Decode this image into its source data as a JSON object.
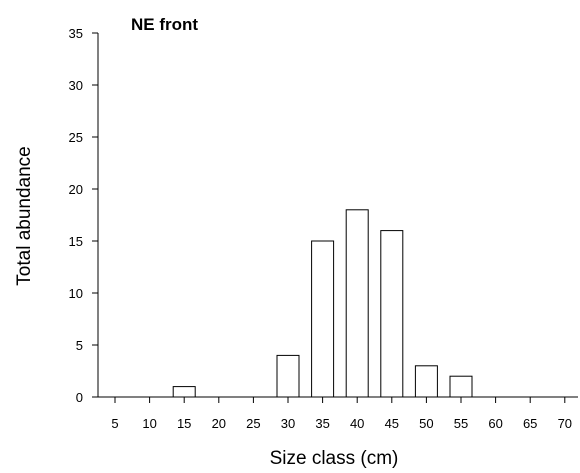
{
  "chart_data": {
    "type": "bar",
    "title": "NE front",
    "xlabel": "Size class (cm)",
    "ylabel": "Total abundance",
    "categories": [
      "5",
      "10",
      "15",
      "20",
      "25",
      "30",
      "35",
      "40",
      "45",
      "50",
      "55",
      "60",
      "65",
      "70"
    ],
    "values": [
      0,
      0,
      1,
      0,
      0,
      4,
      15,
      18,
      16,
      3,
      2,
      0,
      0,
      0
    ],
    "ylim": [
      0,
      35
    ],
    "yticks": [
      "0",
      "5",
      "10",
      "15",
      "20",
      "25",
      "30",
      "35"
    ],
    "grid": false,
    "legend": "none",
    "bar_fill": "#ffffff",
    "bar_stroke": "#000000"
  }
}
